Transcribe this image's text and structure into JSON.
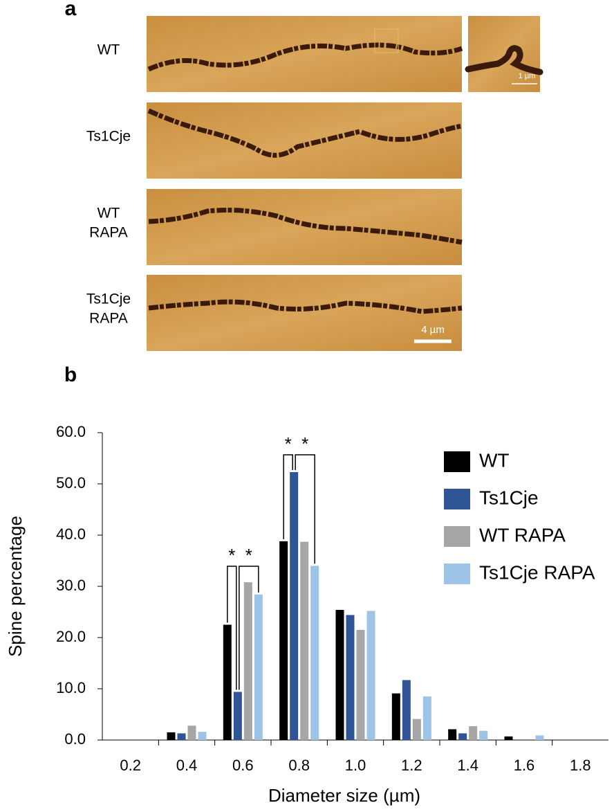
{
  "panel_a": {
    "label": "a",
    "rows": [
      {
        "label": [
          "WT"
        ]
      },
      {
        "label": [
          "Ts1Cje"
        ]
      },
      {
        "label": [
          "WT",
          "RAPA"
        ]
      },
      {
        "label": [
          "Ts1Cje",
          "RAPA"
        ]
      }
    ],
    "inset_scale": "1 µm",
    "scale": "4 µm"
  },
  "chart_data": {
    "type": "bar",
    "panel_label": "b",
    "x_label": "Diameter size (µm)",
    "y_label": "Spine percentage",
    "categories": [
      "0.2",
      "0.4",
      "0.6",
      "0.8",
      "1.0",
      "1.2",
      "1.4",
      "1.6",
      "1.8"
    ],
    "series": [
      {
        "name": "WT",
        "color": "#000000",
        "values": [
          0,
          1.5,
          22.5,
          38.8,
          25.4,
          9.1,
          2.1,
          0.7,
          0
        ]
      },
      {
        "name": "Ts1Cje",
        "color": "#2f5597",
        "values": [
          0,
          1.3,
          9.4,
          52.3,
          24.4,
          11.7,
          1.3,
          0,
          0
        ]
      },
      {
        "name": "WT RAPA",
        "color": "#a6a6a6",
        "values": [
          0,
          2.8,
          30.8,
          38.7,
          21.5,
          4.1,
          2.7,
          0,
          0
        ]
      },
      {
        "name": "Ts1Cje RAPA",
        "color": "#9dc3e6",
        "values": [
          0,
          1.6,
          28.4,
          34.0,
          25.2,
          8.5,
          1.8,
          0.9,
          0
        ]
      }
    ],
    "ylim": [
      0,
      60
    ],
    "yticks": [
      {
        "value": 0,
        "label": "0.0"
      },
      {
        "value": 10,
        "label": "10.0"
      },
      {
        "value": 20,
        "label": "20.0"
      },
      {
        "value": 30,
        "label": "30.0"
      },
      {
        "value": 40,
        "label": "40.0"
      },
      {
        "value": 50,
        "label": "50.0"
      },
      {
        "value": 60,
        "label": "60.0"
      }
    ],
    "grid": false,
    "legend": "right",
    "annotations": [
      "*",
      "*",
      "*",
      "*"
    ]
  }
}
